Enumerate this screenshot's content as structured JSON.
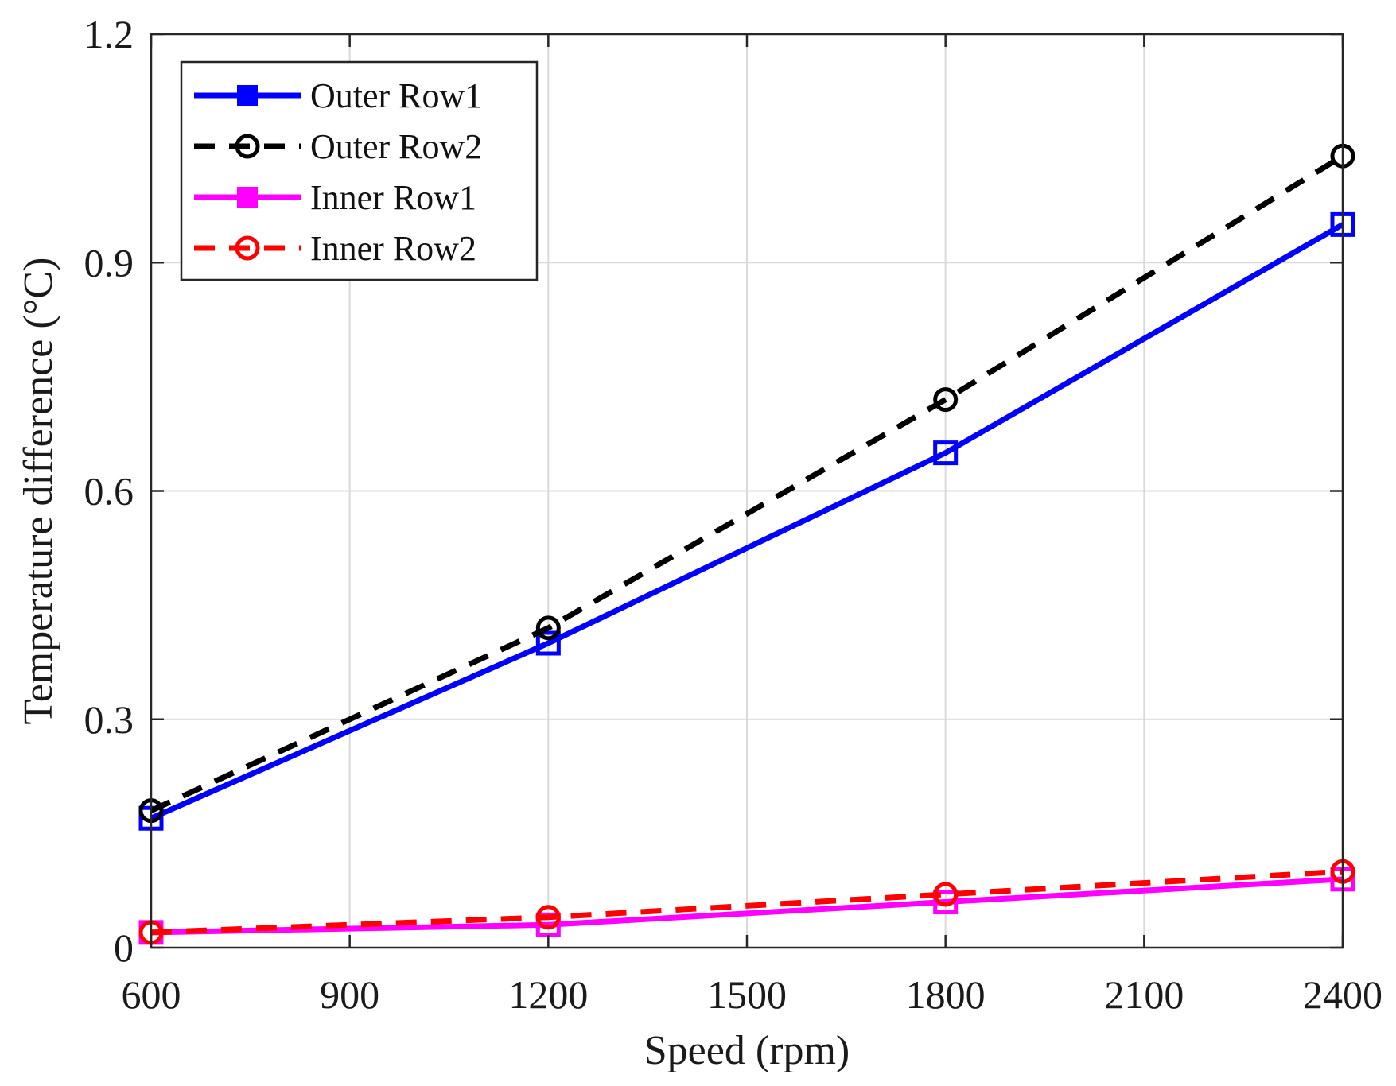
{
  "chart_data": {
    "type": "line",
    "title": "",
    "xlabel": "Speed (rpm)",
    "ylabel": "Temperature difference (°C)",
    "x": [
      600,
      1200,
      1800,
      2400
    ],
    "xlim": [
      600,
      2400
    ],
    "ylim": [
      0,
      1.2
    ],
    "xticks": [
      600,
      900,
      1200,
      1500,
      1800,
      2100,
      2400
    ],
    "xtick_labels": [
      "600",
      "900",
      "1200",
      "1500",
      "1800",
      "2100",
      "2400"
    ],
    "yticks": [
      0,
      0.3,
      0.6,
      0.9,
      1.2
    ],
    "ytick_labels": [
      "0",
      "0.3",
      "0.6",
      "0.9",
      "1.2"
    ],
    "grid": true,
    "legend_position": "top-left",
    "series": [
      {
        "name": "Outer Row1",
        "values": [
          0.17,
          0.4,
          0.65,
          0.95
        ],
        "color": "#0000ff",
        "dash": "solid",
        "marker": "square"
      },
      {
        "name": "Outer Row2",
        "values": [
          0.18,
          0.42,
          0.72,
          1.04
        ],
        "color": "#000000",
        "dash": "dashed",
        "marker": "circle"
      },
      {
        "name": "Inner Row1",
        "values": [
          0.02,
          0.03,
          0.06,
          0.09
        ],
        "color": "#ff00ff",
        "dash": "solid",
        "marker": "square"
      },
      {
        "name": "Inner Row2",
        "values": [
          0.02,
          0.04,
          0.07,
          0.1
        ],
        "color": "#ff0000",
        "dash": "dashed",
        "marker": "circle"
      }
    ]
  }
}
